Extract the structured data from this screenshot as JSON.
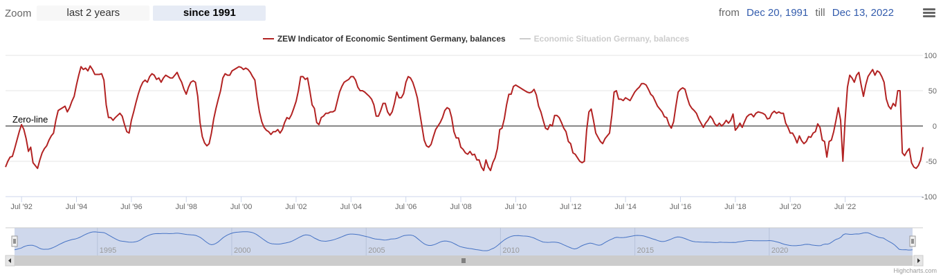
{
  "range_selector": {
    "zoom_label": "Zoom",
    "buttons": [
      {
        "label": "last 2 years",
        "selected": false
      },
      {
        "label": "since 1991",
        "selected": true
      }
    ]
  },
  "date_inputs": {
    "from_label": "from",
    "from_value": "Dec 20, 1991",
    "till_label": "till",
    "till_value": "Dec 13, 2022"
  },
  "menu_icon": "hamburger-icon",
  "credits": "Highcharts.com",
  "colors": {
    "series": "#b22222",
    "series_hidden": "#cccccc",
    "navigator_line": "#4572c4",
    "navigator_mask": "#ccd6eb",
    "zero_line": "#888888",
    "date_text": "#335cad"
  },
  "chart_data": {
    "type": "line",
    "title": "",
    "xlabel": "",
    "ylabel": "",
    "ylim": [
      -100,
      100
    ],
    "y_ticks": [
      "100",
      "50",
      "0",
      "-50",
      "-100"
    ],
    "y_tick_values": [
      100,
      50,
      0,
      -50,
      -100
    ],
    "x_ticks": [
      "Jul '92",
      "Jul '94",
      "Jul '96",
      "Jul '98",
      "Jul '00",
      "Jul '02",
      "Jul '04",
      "Jul '06",
      "Jul '08",
      "Jul '10",
      "Jul '12",
      "Jul '14",
      "Jul '16",
      "Jul '18",
      "Jul '20",
      "Jul '22"
    ],
    "x_tick_months": [
      7,
      31,
      55,
      79,
      103,
      127,
      151,
      175,
      199,
      223,
      247,
      271,
      295,
      319,
      343,
      367
    ],
    "x_start": "Dec 1991",
    "x_end": "Dec 2022",
    "frequency": "monthly",
    "plot_line": {
      "label": "Zero-line",
      "value": 0
    },
    "legend": {
      "position": "top-center"
    },
    "navigator_labels": [
      "1995",
      "2000",
      "2005",
      "2010",
      "2015",
      "2020"
    ],
    "navigator_label_months": [
      37,
      97,
      157,
      217,
      277,
      337
    ],
    "series": [
      {
        "name": "ZEW Indicator of Economic Sentiment Germany, balances",
        "visible": true,
        "values": [
          -58,
          -50,
          -44,
          -43,
          -32,
          -20,
          -8,
          2,
          -5,
          -18,
          -36,
          -30,
          -52,
          -56,
          -60,
          -48,
          -38,
          -32,
          -28,
          -20,
          -14,
          -10,
          8,
          22,
          24,
          26,
          28,
          20,
          26,
          35,
          42,
          58,
          72,
          84,
          80,
          82,
          78,
          85,
          80,
          73,
          73,
          73,
          74,
          65,
          30,
          12,
          12,
          8,
          12,
          15,
          18,
          14,
          2,
          -8,
          -10,
          8,
          20,
          33,
          45,
          55,
          62,
          65,
          62,
          70,
          74,
          72,
          66,
          68,
          62,
          68,
          72,
          70,
          68,
          68,
          72,
          76,
          68,
          62,
          52,
          45,
          55,
          62,
          64,
          62,
          42,
          5,
          -15,
          -24,
          -28,
          -25,
          -10,
          10,
          25,
          38,
          50,
          68,
          74,
          72,
          72,
          78,
          80,
          82,
          84,
          83,
          80,
          82,
          80,
          76,
          70,
          65,
          40,
          20,
          6,
          -2,
          -6,
          -8,
          -12,
          -8,
          -8,
          -5,
          -10,
          -5,
          5,
          12,
          10,
          16,
          25,
          35,
          50,
          70,
          70,
          66,
          68,
          50,
          30,
          25,
          5,
          2,
          12,
          14,
          18,
          18,
          20,
          20,
          22,
          35,
          48,
          56,
          62,
          64,
          66,
          70,
          70,
          65,
          55,
          50,
          50,
          48,
          45,
          42,
          38,
          30,
          14,
          14,
          22,
          32,
          32,
          20,
          15,
          20,
          32,
          48,
          40,
          40,
          46,
          62,
          70,
          68,
          62,
          52,
          40,
          20,
          0,
          -20,
          -28,
          -30,
          -26,
          -15,
          -5,
          0,
          5,
          12,
          22,
          26,
          24,
          12,
          -8,
          -17,
          -17,
          -30,
          -33,
          -38,
          -40,
          -36,
          -41,
          -40,
          -48,
          -48,
          -58,
          -63,
          -48,
          -58,
          -63,
          -52,
          -45,
          -32,
          -5,
          -3,
          10,
          30,
          45,
          45,
          56,
          58,
          56,
          54,
          52,
          50,
          48,
          47,
          48,
          52,
          44,
          28,
          20,
          8,
          -3,
          -5,
          2,
          0,
          15,
          15,
          12,
          5,
          -3,
          -8,
          -22,
          -25,
          -38,
          -40,
          -45,
          -50,
          -52,
          -50,
          -6,
          20,
          24,
          8,
          -10,
          -16,
          -22,
          -25,
          -18,
          -14,
          -10,
          15,
          48,
          50,
          38,
          38,
          36,
          40,
          38,
          36,
          42,
          48,
          52,
          55,
          60,
          60,
          58,
          52,
          45,
          42,
          35,
          28,
          24,
          20,
          13,
          12,
          2,
          -3,
          6,
          28,
          48,
          52,
          54,
          52,
          40,
          30,
          25,
          22,
          18,
          10,
          4,
          -2,
          4,
          8,
          14,
          10,
          3,
          0,
          4,
          0,
          3,
          8,
          4,
          8,
          17,
          -6,
          -2,
          4,
          -2,
          6,
          13,
          16,
          17,
          13,
          18,
          20,
          19,
          18,
          16,
          10,
          11,
          18,
          21,
          18,
          20,
          18,
          18,
          4,
          -2,
          -10,
          -10,
          -16,
          -24,
          -14,
          -21,
          -25,
          -22,
          -15,
          -16,
          -10,
          -8,
          3,
          -2,
          -20,
          -22,
          -44,
          -22,
          -20,
          -8,
          8,
          26,
          8,
          -50,
          10,
          55,
          72,
          68,
          62,
          72,
          76,
          58,
          42,
          58,
          70,
          75,
          80,
          72,
          78,
          76,
          70,
          62,
          38,
          28,
          24,
          32,
          28,
          50,
          50,
          -38,
          -42,
          -36,
          -32,
          -52,
          -58,
          -60,
          -56,
          -48,
          -30
        ]
      },
      {
        "name": "Economic Situation Germany, balances",
        "visible": false,
        "values": []
      }
    ]
  }
}
